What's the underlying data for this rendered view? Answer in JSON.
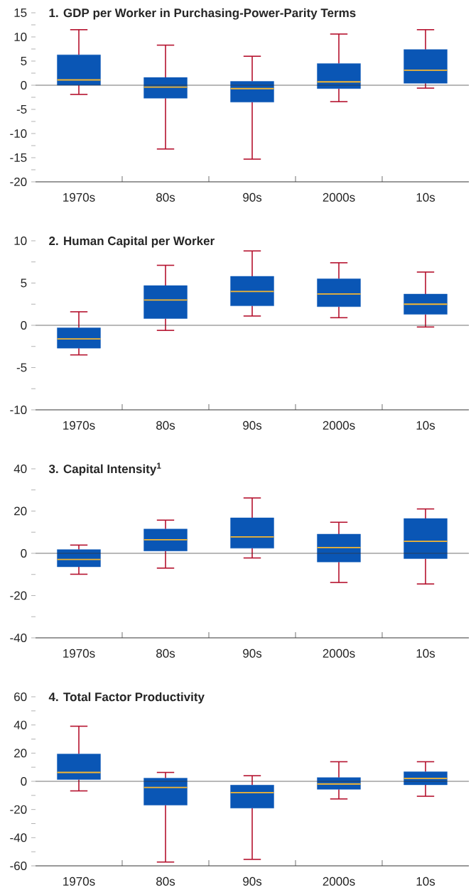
{
  "chart_data": [
    {
      "type": "box",
      "title": "1. GDP per Worker in Purchasing-Power-Parity Terms",
      "categories": [
        "1970s",
        "80s",
        "90s",
        "2000s",
        "10s"
      ],
      "ylim": [
        -20,
        15
      ],
      "yticks": [
        -20,
        {
          "value": -17.5,
          "label": null
        },
        -15,
        {
          "value": -12.5,
          "label": null
        },
        -10,
        {
          "value": -7.5,
          "label": null
        },
        -5,
        {
          "value": -2.5,
          "label": null
        },
        0,
        {
          "value": 2.5,
          "label": null
        },
        5,
        {
          "value": 7.5,
          "label": null
        },
        10,
        {
          "value": 12.5,
          "label": null
        },
        15
      ],
      "ref_lines": [
        {
          "axis": "y",
          "value": 0
        }
      ],
      "series": [
        {
          "color": "#0a56b5",
          "boxes": [
            {
              "low": -1.9,
              "q1": 0,
              "median": 1.1,
              "q3": 6.3,
              "high": 11.5
            },
            {
              "low": -13.2,
              "q1": -2.7,
              "median": -0.4,
              "q3": 1.6,
              "high": 8.3
            },
            {
              "low": -15.3,
              "q1": -3.5,
              "median": -0.7,
              "q3": 0.8,
              "high": 6.0
            },
            {
              "low": -3.4,
              "q1": -0.7,
              "median": 0.7,
              "q3": 4.5,
              "high": 10.6
            },
            {
              "low": -0.6,
              "q1": 0.4,
              "median": 3.1,
              "q3": 7.4,
              "high": 11.5
            }
          ]
        }
      ]
    },
    {
      "type": "box",
      "title": "2. Human Capital per Worker",
      "categories": [
        "1970s",
        "80s",
        "90s",
        "2000s",
        "10s"
      ],
      "ylim": [
        -10,
        10
      ],
      "yticks": [
        -10,
        {
          "value": -7.5,
          "label": null
        },
        -5,
        {
          "value": -2.5,
          "label": null
        },
        0,
        {
          "value": 2.5,
          "label": null
        },
        5,
        {
          "value": 7.5,
          "label": null
        },
        10
      ],
      "ref_lines": [
        {
          "axis": "y",
          "value": 0
        }
      ],
      "series": [
        {
          "color": "#0a56b5",
          "boxes": [
            {
              "low": -3.5,
              "q1": -2.7,
              "median": -1.6,
              "q3": -0.3,
              "high": 1.6
            },
            {
              "low": -0.6,
              "q1": 0.8,
              "median": 3.0,
              "q3": 4.7,
              "high": 7.1
            },
            {
              "low": 1.1,
              "q1": 2.3,
              "median": 4.0,
              "q3": 5.8,
              "high": 8.8
            },
            {
              "low": 0.9,
              "q1": 2.2,
              "median": 3.7,
              "q3": 5.5,
              "high": 7.4
            },
            {
              "low": -0.2,
              "q1": 1.3,
              "median": 2.5,
              "q3": 3.7,
              "high": 6.3
            }
          ]
        }
      ]
    },
    {
      "type": "box",
      "title": "3. Capital Intensity$^{1}$",
      "categories": [
        "1970s",
        "80s",
        "90s",
        "2000s",
        "10s"
      ],
      "ylim": [
        -40,
        40
      ],
      "yticks": [
        -40,
        {
          "value": -30,
          "label": null
        },
        -20,
        {
          "value": -10,
          "label": null
        },
        0,
        {
          "value": 10,
          "label": null
        },
        20,
        {
          "value": 30,
          "label": null
        },
        40
      ],
      "ref_lines": [
        {
          "axis": "y",
          "value": 0
        }
      ],
      "series": [
        {
          "color": "#0a56b5",
          "boxes": [
            {
              "low": -9.9,
              "q1": -6.4,
              "median": -2.9,
              "q3": 1.8,
              "high": 3.9
            },
            {
              "low": -7.0,
              "q1": 1.1,
              "median": 6.4,
              "q3": 11.5,
              "high": 15.7
            },
            {
              "low": -2.2,
              "q1": 2.4,
              "median": 7.8,
              "q3": 16.8,
              "high": 26.2
            },
            {
              "low": -13.8,
              "q1": -4.1,
              "median": 2.7,
              "q3": 9.1,
              "high": 14.7
            },
            {
              "low": -14.5,
              "q1": -2.5,
              "median": 5.7,
              "q3": 16.5,
              "high": 21.0
            }
          ]
        }
      ]
    },
    {
      "type": "box",
      "title": "4. Total Factor Productivity",
      "categories": [
        "1970s",
        "80s",
        "90s",
        "2000s",
        "10s"
      ],
      "ylim": [
        -60,
        60
      ],
      "yticks": [
        -60,
        {
          "value": -50,
          "label": null
        },
        -40,
        {
          "value": -30,
          "label": null
        },
        -20,
        {
          "value": -10,
          "label": null
        },
        0,
        {
          "value": 10,
          "label": null
        },
        20,
        {
          "value": 30,
          "label": null
        },
        40,
        {
          "value": 50,
          "label": null
        },
        60
      ],
      "ref_lines": [
        {
          "axis": "y",
          "value": 0
        }
      ],
      "series": [
        {
          "color": "#0a56b5",
          "boxes": [
            {
              "low": -6.8,
              "q1": 1.3,
              "median": 6.3,
              "q3": 19.4,
              "high": 39.1
            },
            {
              "low": -57.3,
              "q1": -16.9,
              "median": -4.4,
              "q3": 2.3,
              "high": 6.3
            },
            {
              "low": -55.4,
              "q1": -19.0,
              "median": -8.0,
              "q3": -2.7,
              "high": 4.0
            },
            {
              "low": -12.5,
              "q1": -5.7,
              "median": -1.9,
              "q3": 2.7,
              "high": 13.9
            },
            {
              "low": -10.6,
              "q1": -2.5,
              "median": 2.1,
              "q3": 6.8,
              "high": 13.9
            }
          ]
        }
      ]
    }
  ]
}
